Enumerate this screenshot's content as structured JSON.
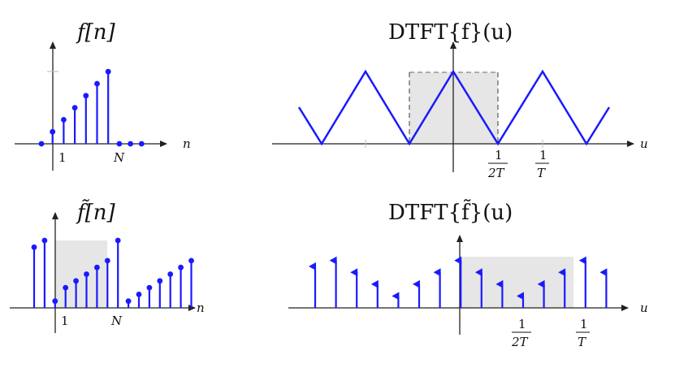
{
  "panels": {
    "top_left": {
      "title": "f[n]",
      "axis_label": "n",
      "tick_one": "1",
      "tick_N": "N"
    },
    "top_right": {
      "title": "DTFT{f}(u)",
      "axis_label": "u",
      "frac1_num": "1",
      "frac1_den": "2T",
      "frac2_num": "1",
      "frac2_den": "T"
    },
    "bottom_left": {
      "title": "f̃[n]",
      "axis_label": "n",
      "tick_one": "1",
      "tick_N": "N"
    },
    "bottom_right": {
      "title": "DTFT{f̃}(u)",
      "axis_label": "u",
      "frac1_num": "1",
      "frac1_den": "2T",
      "frac2_num": "1",
      "frac2_den": "T"
    }
  },
  "colors": {
    "signal": "#1a1aff",
    "axis": "#222222",
    "shade": "#e6e6e6",
    "dash": "#666666"
  },
  "chart_data": [
    {
      "type": "stem",
      "series": [
        {
          "values": [
            0,
            1,
            2,
            3,
            4,
            5,
            6,
            0,
            0,
            0
          ]
        }
      ]
    },
    {
      "type": "line",
      "series": [
        {
          "shape": "triangle-wave"
        }
      ]
    },
    {
      "type": "stem",
      "series": [
        {
          "values": [
            9,
            10,
            1,
            3,
            4,
            5,
            6,
            7,
            10,
            1,
            2,
            3,
            4,
            5,
            6,
            7
          ]
        }
      ]
    },
    {
      "type": "impulse-train",
      "series": [
        {
          "values": [
            7,
            8,
            6,
            4,
            2,
            4,
            6,
            8,
            6,
            4,
            2,
            4,
            6,
            8,
            6
          ]
        }
      ]
    }
  ]
}
